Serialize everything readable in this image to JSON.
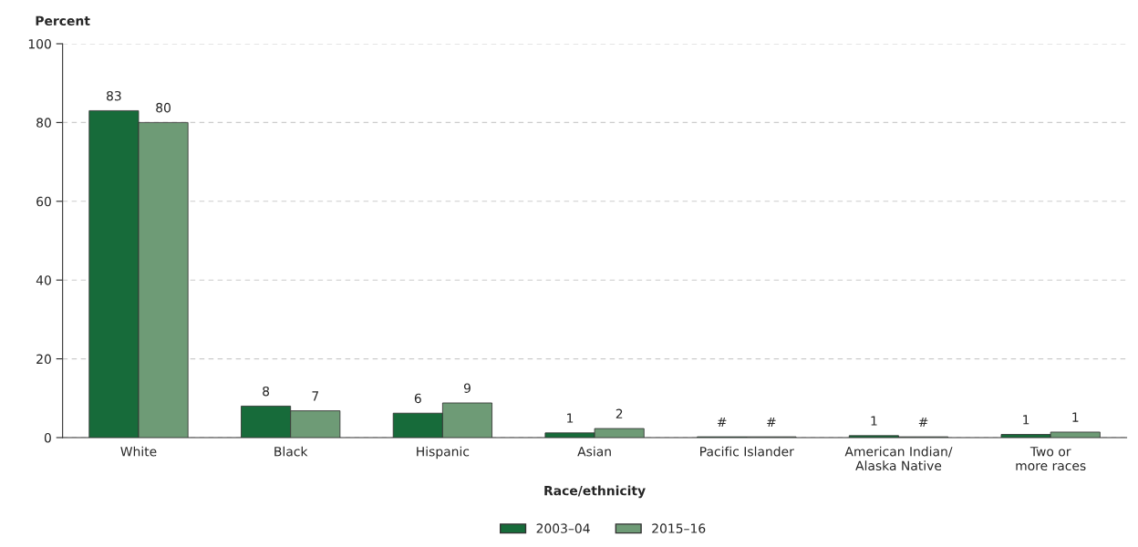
{
  "chart_data": {
    "type": "bar",
    "ylabel": "Percent",
    "xlabel": "Race/ethnicity",
    "categories": [
      "White",
      "Black",
      "Hispanic",
      "Asian",
      "Pacific Islander",
      "American Indian/\nAlaska Native",
      "Two or\nmore races"
    ],
    "series": [
      {
        "name": "2003–04",
        "color": "#176b3a",
        "values": [
          83,
          8,
          6.2,
          1.2,
          0.2,
          0.5,
          0.8
        ],
        "value_labels": [
          "83",
          "8",
          "6",
          "1",
          "#",
          "1",
          "1"
        ]
      },
      {
        "name": "2015–16",
        "color": "#6e9b76",
        "values": [
          80,
          6.8,
          8.8,
          2.3,
          0.2,
          0.2,
          1.4
        ],
        "value_labels": [
          "80",
          "7",
          "9",
          "2",
          "#",
          "#",
          "1"
        ]
      }
    ],
    "ylim": [
      0,
      100
    ],
    "yticks": [
      0,
      20,
      40,
      60,
      80,
      100
    ],
    "grid": "y",
    "legend": "bottom"
  }
}
